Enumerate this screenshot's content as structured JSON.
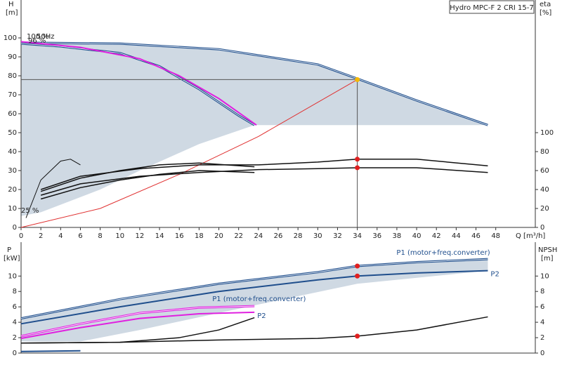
{
  "chart_data": [
    {
      "type": "line",
      "title": "Hydro MPC-F 2 CRI 15-7",
      "y_label": "H",
      "y_unit": "[m]",
      "y2_label": "eta",
      "y2_unit": "[%]",
      "x_label": "Q [m³/h]",
      "xlim": [
        0,
        52
      ],
      "xticks": [
        0,
        2,
        4,
        6,
        8,
        10,
        12,
        14,
        16,
        18,
        20,
        22,
        24,
        26,
        28,
        30,
        32,
        34,
        36,
        38,
        40,
        42,
        44,
        46,
        48
      ],
      "ylim": [
        0,
        120
      ],
      "yticks": [
        0,
        10,
        20,
        30,
        40,
        50,
        60,
        70,
        80,
        90,
        100
      ],
      "y2lim": [
        0,
        240
      ],
      "y2ticks": [
        0,
        20,
        40,
        60,
        80,
        100
      ],
      "regions": [
        {
          "color": "#cfd9e3",
          "x": [
            0,
            10,
            20,
            30,
            34,
            40,
            47.2,
            47.2,
            23.6,
            18,
            12,
            8,
            4,
            2,
            0
          ],
          "values": [
            98,
            97.5,
            94.5,
            86.5,
            79,
            67,
            54,
            54,
            54,
            44,
            30,
            20,
            12,
            8,
            6
          ]
        }
      ],
      "series": [
        {
          "color": "#1f4e8c",
          "width": 3,
          "x": [
            0,
            10,
            20,
            30,
            34,
            40,
            47.2
          ],
          "values": [
            97.5,
            97,
            94,
            86,
            78.5,
            67,
            54
          ]
        },
        {
          "color": "#1f4e8c",
          "width": 3,
          "x": [
            0,
            4,
            10,
            14,
            18,
            22,
            23.6
          ],
          "values": [
            97,
            95.5,
            92,
            85,
            73,
            59,
            54
          ]
        },
        {
          "color": "#e020e0",
          "width": 2,
          "x": [
            0,
            6,
            12,
            16,
            20,
            23.8
          ],
          "values": [
            98,
            95,
            89,
            80,
            68,
            54
          ]
        },
        {
          "color": "#e03030",
          "width": 1,
          "x": [
            0,
            8,
            16,
            24,
            34
          ],
          "values": [
            0,
            10,
            28,
            48,
            78
          ]
        },
        {
          "color": "#111111",
          "width": 1.5,
          "axis": "y2",
          "x": [
            2,
            6,
            12,
            18,
            24,
            30,
            34,
            40,
            47.2
          ],
          "values": [
            40,
            54,
            62,
            66,
            66,
            69,
            72,
            72,
            65
          ]
        },
        {
          "color": "#111111",
          "width": 1.5,
          "axis": "y2",
          "x": [
            2,
            6,
            12,
            18,
            24,
            30,
            34,
            40,
            47.2
          ],
          "values": [
            34,
            46,
            54,
            58,
            61,
            62,
            63,
            63,
            58
          ]
        },
        {
          "color": "#111111",
          "width": 1.5,
          "axis": "y2",
          "x": [
            2,
            6,
            10,
            14,
            18,
            23.6
          ],
          "values": [
            38,
            52,
            60,
            66,
            68,
            64
          ]
        },
        {
          "color": "#111111",
          "width": 1.5,
          "axis": "y2",
          "x": [
            2,
            6,
            10,
            14,
            18,
            23.6
          ],
          "values": [
            30,
            42,
            50,
            56,
            60,
            58
          ]
        },
        {
          "color": "#111111",
          "width": 1,
          "axis": "y2",
          "x": [
            0.5,
            2,
            4,
            5,
            6
          ],
          "values": [
            10,
            50,
            70,
            72,
            66
          ]
        }
      ],
      "markers": [
        {
          "color": "#f5b800",
          "x": 34,
          "values": 78,
          "guide": true
        },
        {
          "color": "#e02020",
          "x": 34,
          "values": 72,
          "axis": "y2"
        },
        {
          "color": "#e02020",
          "x": 34,
          "values": 63,
          "axis": "y2"
        }
      ],
      "annotations": [
        "100 %",
        "50Hz",
        "96 %",
        "25 %"
      ]
    },
    {
      "type": "line",
      "y_label": "P",
      "y_unit": "[kW]",
      "y2_label": "NPSH",
      "y2_unit": "[m]",
      "xlim": [
        0,
        52
      ],
      "ylim": [
        0,
        14.4
      ],
      "yticks": [
        0,
        2,
        4,
        6,
        8,
        10
      ],
      "y2lim": [
        0,
        14.4
      ],
      "y2ticks": [
        0,
        2,
        4,
        6,
        8,
        10
      ],
      "regions": [
        {
          "color": "#cfd9e3",
          "x": [
            0,
            10,
            20,
            30,
            34,
            40,
            47.2,
            47.2,
            34,
            23.6,
            12,
            6,
            0
          ],
          "values": [
            4.5,
            7,
            9,
            10.5,
            11.3,
            11.8,
            12.2,
            10.7,
            9,
            6.2,
            3,
            1.5,
            1.5
          ]
        }
      ],
      "series": [
        {
          "name": "P1 (motor+freq.converter)",
          "color": "#1f4e8c",
          "width": 3,
          "x": [
            0,
            10,
            20,
            30,
            34,
            40,
            47.2
          ],
          "values": [
            4.5,
            7,
            9,
            10.5,
            11.3,
            11.8,
            12.2
          ]
        },
        {
          "name": "P2",
          "color": "#1f4e8c",
          "width": 2,
          "x": [
            0,
            10,
            20,
            30,
            34,
            40,
            47.2
          ],
          "values": [
            3.8,
            6,
            8,
            9.5,
            10,
            10.4,
            10.7
          ]
        },
        {
          "name": "P1 (motor+freq.converter)",
          "color": "#e020e0",
          "width": 3,
          "x": [
            0,
            6,
            12,
            18,
            23.6
          ],
          "values": [
            2.2,
            3.8,
            5.2,
            5.9,
            6.1
          ]
        },
        {
          "name": "P2",
          "color": "#e020e0",
          "width": 2,
          "x": [
            0,
            6,
            12,
            18,
            23.6
          ],
          "values": [
            1.9,
            3.3,
            4.5,
            5.1,
            5.3
          ]
        },
        {
          "color": "#111111",
          "width": 1.5,
          "axis": "y2",
          "x": [
            0,
            10,
            20,
            30,
            34,
            40,
            47.2
          ],
          "values": [
            1.3,
            1.4,
            1.7,
            1.9,
            2.2,
            3,
            4.7
          ]
        },
        {
          "color": "#111111",
          "width": 1.5,
          "axis": "y2",
          "x": [
            0,
            10,
            16,
            20,
            23.6
          ],
          "values": [
            1.3,
            1.4,
            2,
            3,
            4.6
          ]
        },
        {
          "color": "#1f4e8c",
          "width": 2,
          "x": [
            0,
            6
          ],
          "values": [
            0.2,
            0.3
          ]
        }
      ],
      "markers": [
        {
          "color": "#e02020",
          "x": 34,
          "values": 11.3
        },
        {
          "color": "#e02020",
          "x": 34,
          "values": 10
        },
        {
          "color": "#e02020",
          "x": 34,
          "values": 2.2,
          "axis": "y2"
        }
      ]
    }
  ]
}
